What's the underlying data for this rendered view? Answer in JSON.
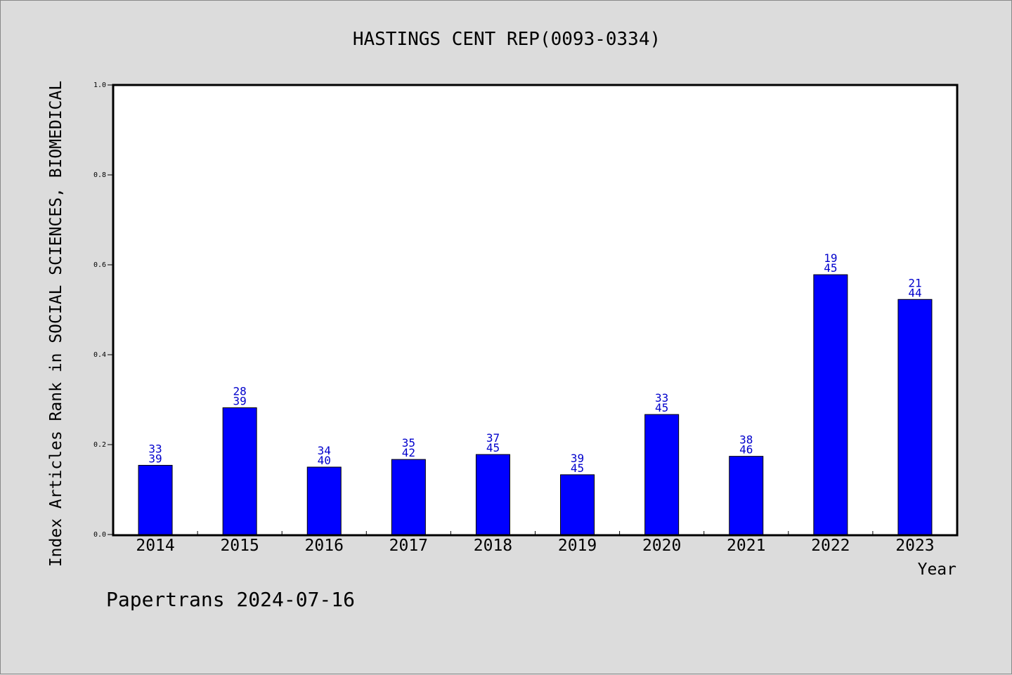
{
  "chart_data": {
    "type": "bar",
    "title": "HASTINGS CENT REP(0093-0334)",
    "xlabel": "Year",
    "ylabel": "Index Articles Rank in SOCIAL SCIENCES, BIOMEDICAL",
    "ylim": [
      0,
      1.0
    ],
    "yticks": [
      "0.0",
      "0.2",
      "0.4",
      "0.6",
      "0.8",
      "1.0"
    ],
    "grid": false,
    "bar_color": "#0000ff",
    "categories": [
      "2014",
      "2015",
      "2016",
      "2017",
      "2018",
      "2019",
      "2020",
      "2021",
      "2022",
      "2023"
    ],
    "values": [
      0.154,
      0.282,
      0.15,
      0.167,
      0.178,
      0.133,
      0.267,
      0.174,
      0.578,
      0.523
    ],
    "labels_top": [
      "33",
      "28",
      "34",
      "35",
      "37",
      "39",
      "33",
      "38",
      "19",
      "21"
    ],
    "labels_bottom": [
      "39",
      "39",
      "40",
      "42",
      "45",
      "45",
      "45",
      "46",
      "45",
      "44"
    ]
  },
  "footer": "Papertrans 2024-07-16"
}
